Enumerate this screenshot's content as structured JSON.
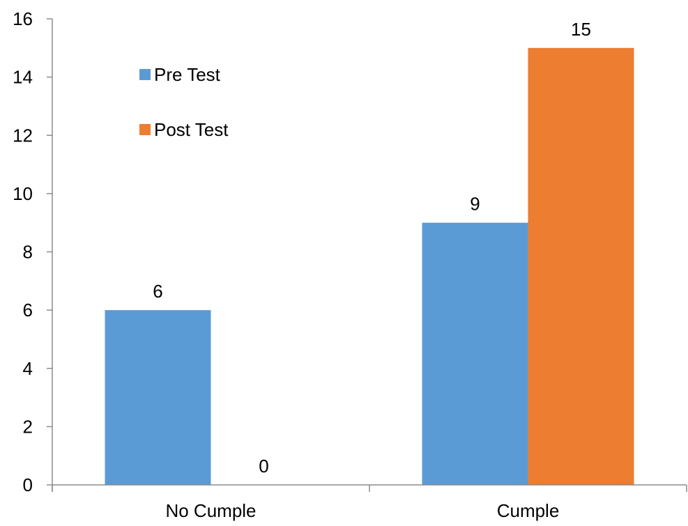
{
  "chart_data": {
    "type": "bar",
    "categories": [
      "No Cumple",
      "Cumple"
    ],
    "series": [
      {
        "name": "Pre Test",
        "values": [
          6,
          9
        ],
        "color": "#5B9BD5"
      },
      {
        "name": "Post Test",
        "values": [
          0,
          15
        ],
        "color": "#ED7D31"
      }
    ],
    "ylim": [
      0,
      16
    ],
    "yticks": [
      0,
      2,
      4,
      6,
      8,
      10,
      12,
      14,
      16
    ],
    "grid": false,
    "legend_position": "top-left-inside",
    "show_data_labels": true,
    "axis_color": "#8C8C8C"
  }
}
